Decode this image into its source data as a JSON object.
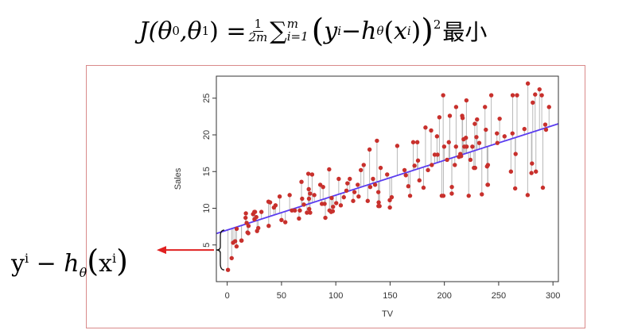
{
  "formula": {
    "lhs": "J(θ",
    "sub0": "0",
    "comma": ",θ",
    "sub1": "1",
    "close": ") =",
    "frac_num": "1",
    "frac_den": "2m",
    "sum_symbol": "∑",
    "sum_upper": "m",
    "sum_lower": "i=1",
    "open_paren": "(",
    "y": "y",
    "y_sup": "i",
    "minus": " − ",
    "h": "h",
    "h_sub": "θ",
    "inner_open": "(",
    "x": "x",
    "x_sup": "i",
    "inner_close": ")",
    "close_paren": ")",
    "power": "2",
    "suffix": "最小"
  },
  "residual_label": {
    "y": "y",
    "y_sup": "i",
    "minus": " − ",
    "h": "h",
    "h_sub": "θ",
    "open": "(",
    "x": "x",
    "x_sup": "i",
    "close": ")"
  },
  "colors": {
    "points": "#c8302c",
    "regression_line": "#5a3cf0",
    "residual_lines": "#b8b8b8",
    "arrow": "#e02020",
    "frame": "#d98a8a"
  },
  "chart_data": {
    "type": "scatter",
    "title": "",
    "xlabel": "TV",
    "ylabel": "Sales",
    "xlim": [
      -10,
      305
    ],
    "ylim": [
      0,
      28
    ],
    "x_ticks": [
      0,
      50,
      100,
      150,
      200,
      250,
      300
    ],
    "y_ticks": [
      5,
      10,
      15,
      20,
      25
    ],
    "grid": false,
    "regression_line": {
      "intercept": 7.03,
      "slope": 0.0475
    },
    "points": [
      [
        0.7,
        1.6
      ],
      [
        5.4,
        5.3
      ],
      [
        4.1,
        3.2
      ],
      [
        7.3,
        5.5
      ],
      [
        8.6,
        4.8
      ],
      [
        8.7,
        7.2
      ],
      [
        13.1,
        5.6
      ],
      [
        13.2,
        5.6
      ],
      [
        16.9,
        8.7
      ],
      [
        17.2,
        9.3
      ],
      [
        17.9,
        8.0
      ],
      [
        18.7,
        6.7
      ],
      [
        19.4,
        6.6
      ],
      [
        19.6,
        7.6
      ],
      [
        23.8,
        9.2
      ],
      [
        25.0,
        9.5
      ],
      [
        25.1,
        8.5
      ],
      [
        25.6,
        9.5
      ],
      [
        26.8,
        8.8
      ],
      [
        27.5,
        6.9
      ],
      [
        28.6,
        7.3
      ],
      [
        31.5,
        9.5
      ],
      [
        38.0,
        10.9
      ],
      [
        38.2,
        7.6
      ],
      [
        39.5,
        10.8
      ],
      [
        43.0,
        10.1
      ],
      [
        44.5,
        10.4
      ],
      [
        48.3,
        11.6
      ],
      [
        50.0,
        8.4
      ],
      [
        53.5,
        8.1
      ],
      [
        57.5,
        11.8
      ],
      [
        59.6,
        9.7
      ],
      [
        62.3,
        9.7
      ],
      [
        66.1,
        8.6
      ],
      [
        66.9,
        9.7
      ],
      [
        68.4,
        13.6
      ],
      [
        69.0,
        11.3
      ],
      [
        70.6,
        10.5
      ],
      [
        73.4,
        9.4
      ],
      [
        74.7,
        14.7
      ],
      [
        75.1,
        12.6
      ],
      [
        75.3,
        11.3
      ],
      [
        75.5,
        9.9
      ],
      [
        76.3,
        12.0
      ],
      [
        76.4,
        9.4
      ],
      [
        78.2,
        14.6
      ],
      [
        80.2,
        11.8
      ],
      [
        85.7,
        13.2
      ],
      [
        87.2,
        10.6
      ],
      [
        88.3,
        12.9
      ],
      [
        89.7,
        10.6
      ],
      [
        90.4,
        8.7
      ],
      [
        93.9,
        15.3
      ],
      [
        94.2,
        9.7
      ],
      [
        95.7,
        9.5
      ],
      [
        96.2,
        11.4
      ],
      [
        97.2,
        9.6
      ],
      [
        97.5,
        10.2
      ],
      [
        100.4,
        10.7
      ],
      [
        102.7,
        14.0
      ],
      [
        104.6,
        10.4
      ],
      [
        107.4,
        11.5
      ],
      [
        109.8,
        12.4
      ],
      [
        110.7,
        13.4
      ],
      [
        112.9,
        14.0
      ],
      [
        116.0,
        11.0
      ],
      [
        117.2,
        12.2
      ],
      [
        120.2,
        13.2
      ],
      [
        121.0,
        11.6
      ],
      [
        123.1,
        15.2
      ],
      [
        125.7,
        15.9
      ],
      [
        129.4,
        11.0
      ],
      [
        131.1,
        18.0
      ],
      [
        131.7,
        12.9
      ],
      [
        134.3,
        14.0
      ],
      [
        136.2,
        13.2
      ],
      [
        137.9,
        19.2
      ],
      [
        139.2,
        12.2
      ],
      [
        139.3,
        10.3
      ],
      [
        139.5,
        10.8
      ],
      [
        140.3,
        10.3
      ],
      [
        141.3,
        15.5
      ],
      [
        147.3,
        14.6
      ],
      [
        149.7,
        11.1
      ],
      [
        149.8,
        10.1
      ],
      [
        151.5,
        11.5
      ],
      [
        156.6,
        18.5
      ],
      [
        163.3,
        15.2
      ],
      [
        164.5,
        14.5
      ],
      [
        166.8,
        13.0
      ],
      [
        168.4,
        11.7
      ],
      [
        171.3,
        19.0
      ],
      [
        172.5,
        15.8
      ],
      [
        175.1,
        19.0
      ],
      [
        175.7,
        16.5
      ],
      [
        177.0,
        13.8
      ],
      [
        180.8,
        12.8
      ],
      [
        182.6,
        21.0
      ],
      [
        184.9,
        15.2
      ],
      [
        187.8,
        20.6
      ],
      [
        188.4,
        15.9
      ],
      [
        191.1,
        17.3
      ],
      [
        193.2,
        19.8
      ],
      [
        193.7,
        17.3
      ],
      [
        195.4,
        22.4
      ],
      [
        197.6,
        11.7
      ],
      [
        198.9,
        25.4
      ],
      [
        199.1,
        11.7
      ],
      [
        199.8,
        18.4
      ],
      [
        202.5,
        16.6
      ],
      [
        204.1,
        19.0
      ],
      [
        205.0,
        22.6
      ],
      [
        206.8,
        12.0
      ],
      [
        206.9,
        12.9
      ],
      [
        209.6,
        15.9
      ],
      [
        210.7,
        18.4
      ],
      [
        210.8,
        23.8
      ],
      [
        213.4,
        17.0
      ],
      [
        214.7,
        17.4
      ],
      [
        215.4,
        17.1
      ],
      [
        216.4,
        22.6
      ],
      [
        216.8,
        22.3
      ],
      [
        217.7,
        19.4
      ],
      [
        218.4,
        18.4
      ],
      [
        219.8,
        19.6
      ],
      [
        220.3,
        24.7
      ],
      [
        220.5,
        18.4
      ],
      [
        222.4,
        11.7
      ],
      [
        224.0,
        16.6
      ],
      [
        225.8,
        18.4
      ],
      [
        227.2,
        15.5
      ],
      [
        228.0,
        21.5
      ],
      [
        228.3,
        15.5
      ],
      [
        229.5,
        19.7
      ],
      [
        230.1,
        22.1
      ],
      [
        232.1,
        18.9
      ],
      [
        234.5,
        11.9
      ],
      [
        237.4,
        23.8
      ],
      [
        238.2,
        20.7
      ],
      [
        239.3,
        15.7
      ],
      [
        239.8,
        13.2
      ],
      [
        240.1,
        13.2
      ],
      [
        240.1,
        15.9
      ],
      [
        243.2,
        25.4
      ],
      [
        248.4,
        20.2
      ],
      [
        248.8,
        18.9
      ],
      [
        250.9,
        22.2
      ],
      [
        255.4,
        19.8
      ],
      [
        261.3,
        15.0
      ],
      [
        262.7,
        20.2
      ],
      [
        262.9,
        25.4
      ],
      [
        265.2,
        12.7
      ],
      [
        265.6,
        17.4
      ],
      [
        266.9,
        25.4
      ],
      [
        273.7,
        20.8
      ],
      [
        276.9,
        27.0
      ],
      [
        276.7,
        11.8
      ],
      [
        280.2,
        14.8
      ],
      [
        280.7,
        16.1
      ],
      [
        281.4,
        24.4
      ],
      [
        283.6,
        25.5
      ],
      [
        284.3,
        15.0
      ],
      [
        287.6,
        26.2
      ],
      [
        289.7,
        25.4
      ],
      [
        290.7,
        12.8
      ],
      [
        292.9,
        21.4
      ],
      [
        293.6,
        20.7
      ],
      [
        296.4,
        23.8
      ]
    ]
  }
}
